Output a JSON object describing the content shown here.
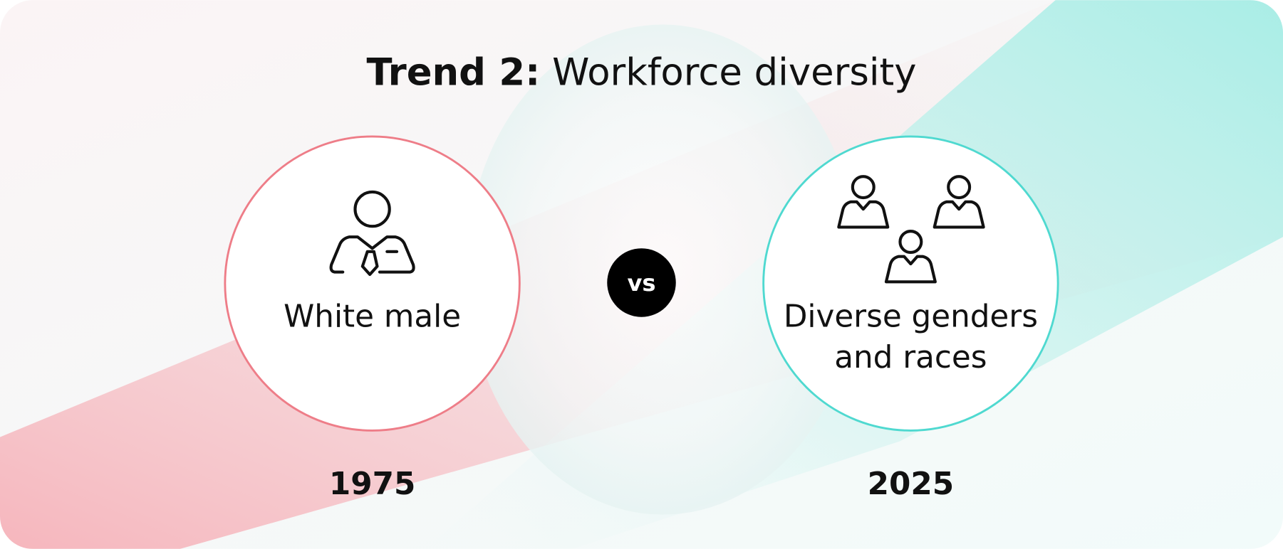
{
  "title": {
    "bold": "Trend 2:",
    "regular": "Workforce diversity"
  },
  "separator": "vs",
  "left": {
    "label": "White male",
    "year": "1975"
  },
  "right": {
    "label_lines": [
      "Diverse genders",
      "and races"
    ],
    "year": "2025"
  }
}
